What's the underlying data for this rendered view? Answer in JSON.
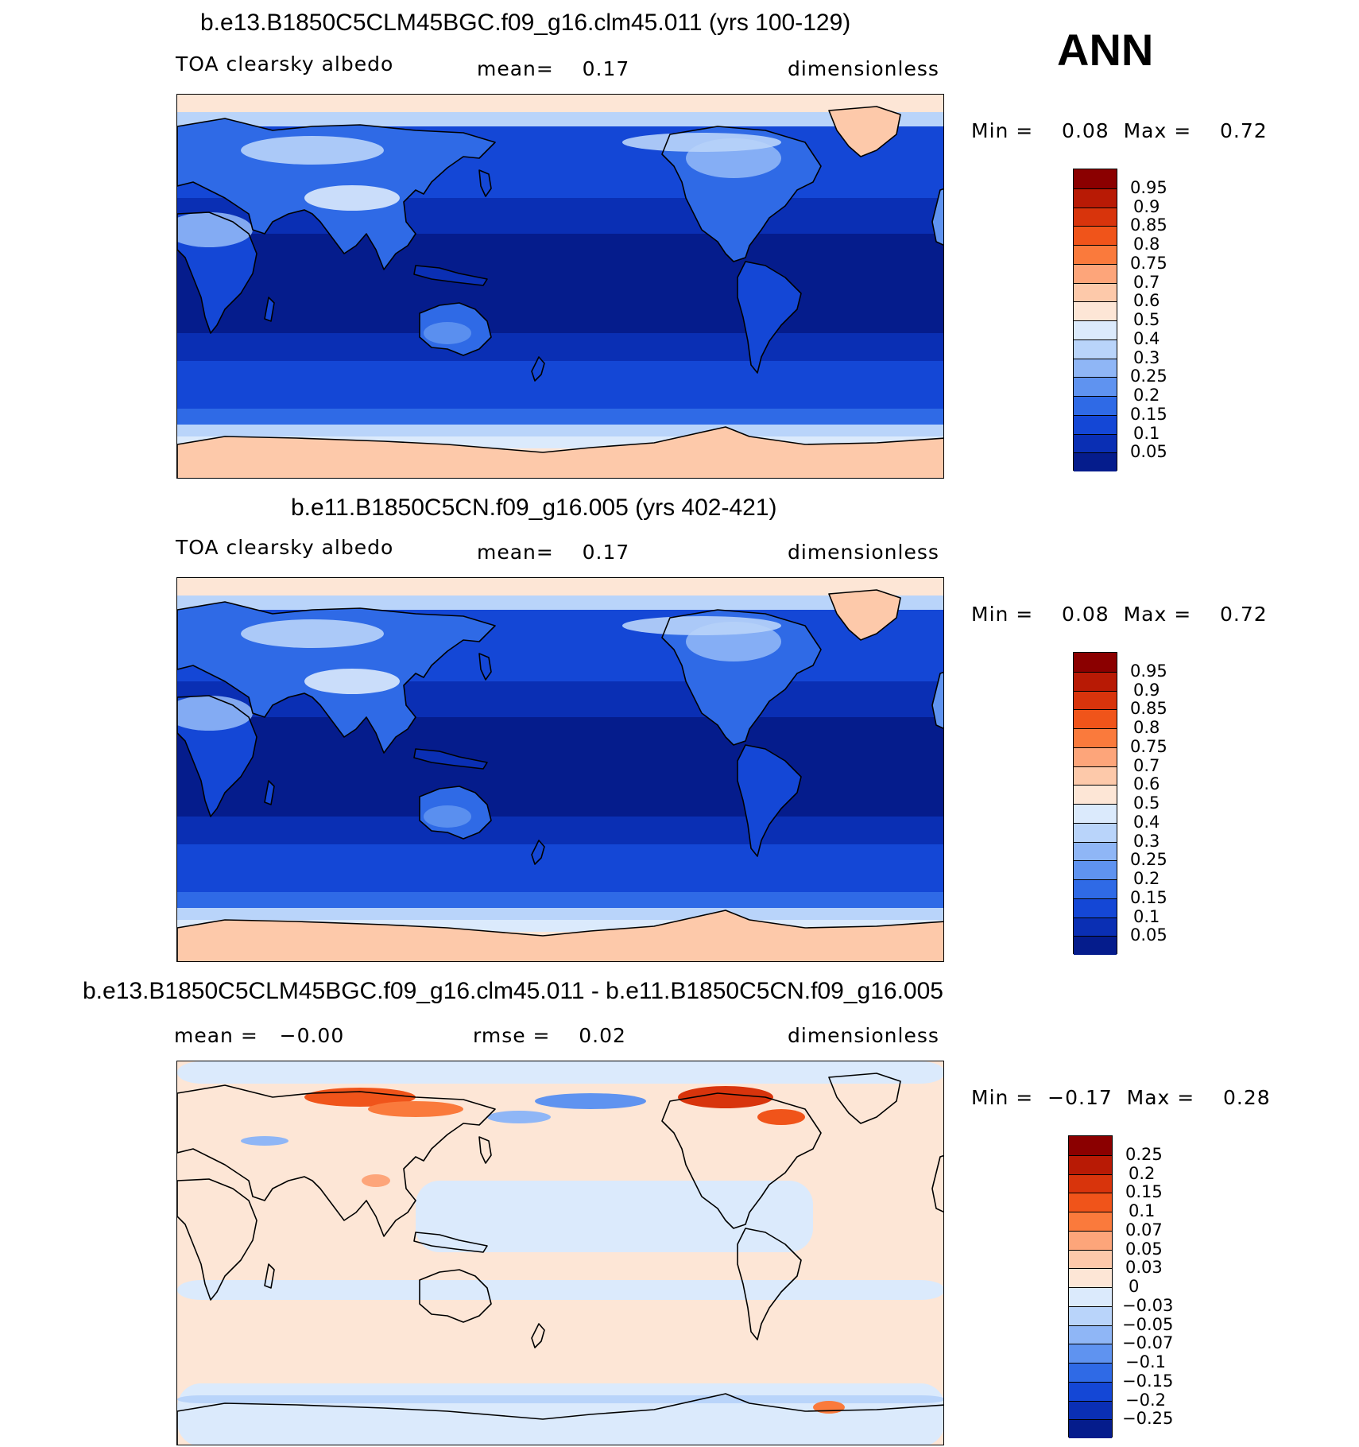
{
  "ann_label": "ANN",
  "panels": [
    {
      "title": "b.e13.B1850C5CLM45BGC.f09_g16.clm45.011 (yrs 100-129)",
      "left_label": "TOA clearsky albedo",
      "center_label": "mean=    0.17",
      "right_label": "dimensionless",
      "minmax": "Min =    0.08  Max =    0.72",
      "palette": "abs",
      "levels": [
        "0.95",
        "0.9",
        "0.85",
        "0.8",
        "0.75",
        "0.7",
        "0.6",
        "0.5",
        "0.4",
        "0.3",
        "0.25",
        "0.2",
        "0.15",
        "0.1",
        "0.05"
      ],
      "colors": [
        "#8b0000",
        "#b81a05",
        "#d8340c",
        "#f0541a",
        "#fa7a3c",
        "#fda57a",
        "#fdc9aa",
        "#fde6d6",
        "#dbeafc",
        "#b9d4fa",
        "#8fb6f6",
        "#5f93f0",
        "#2f6ae6",
        "#1447d6",
        "#0a2fb4",
        "#051c8c"
      ],
      "map_style": "abs1"
    },
    {
      "title": "b.e11.B1850C5CN.f09_g16.005 (yrs 402-421)",
      "left_label": "TOA clearsky albedo",
      "center_label": "mean=    0.17",
      "right_label": "dimensionless",
      "minmax": "Min =    0.08  Max =    0.72",
      "palette": "abs",
      "levels": [
        "0.95",
        "0.9",
        "0.85",
        "0.8",
        "0.75",
        "0.7",
        "0.6",
        "0.5",
        "0.4",
        "0.3",
        "0.25",
        "0.2",
        "0.15",
        "0.1",
        "0.05"
      ],
      "colors": [
        "#8b0000",
        "#b81a05",
        "#d8340c",
        "#f0541a",
        "#fa7a3c",
        "#fda57a",
        "#fdc9aa",
        "#fde6d6",
        "#dbeafc",
        "#b9d4fa",
        "#8fb6f6",
        "#5f93f0",
        "#2f6ae6",
        "#1447d6",
        "#0a2fb4",
        "#051c8c"
      ],
      "map_style": "abs2"
    },
    {
      "title": "b.e13.B1850C5CLM45BGC.f09_g16.clm45.011 - b.e11.B1850C5CN.f09_g16.005",
      "left_label": "mean =   −0.00",
      "center_label": "rmse =    0.02",
      "right_label": "dimensionless",
      "minmax": "Min =  −0.17  Max =    0.28",
      "palette": "diff",
      "levels": [
        "0.25",
        "0.2",
        "0.15",
        "0.1",
        "0.07",
        "0.05",
        "0.03",
        "0",
        "−0.03",
        "−0.05",
        "−0.07",
        "−0.1",
        "−0.15",
        "−0.2",
        "−0.25"
      ],
      "colors": [
        "#8b0000",
        "#b81a05",
        "#d8340c",
        "#f0541a",
        "#fa7a3c",
        "#fda57a",
        "#fdc9aa",
        "#fde6d6",
        "#dbeafc",
        "#b9d4fa",
        "#8fb6f6",
        "#5f93f0",
        "#2f6ae6",
        "#1447d6",
        "#0a2fb4",
        "#051c8c"
      ],
      "map_style": "diff"
    }
  ]
}
